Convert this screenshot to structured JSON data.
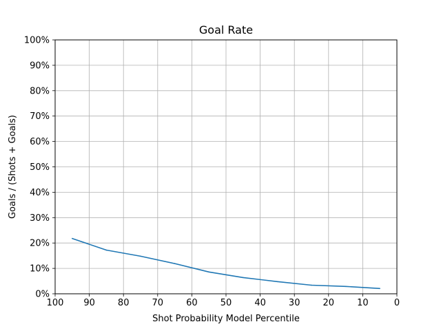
{
  "chart_data": {
    "type": "line",
    "title": "Goal Rate",
    "xlabel": "Shot Probability Model Percentile",
    "ylabel": "Goals / (Shots + Goals)",
    "xlim": [
      100,
      0
    ],
    "ylim": [
      0,
      100
    ],
    "x_reversed": true,
    "grid": true,
    "x_ticks": [
      100,
      90,
      80,
      70,
      60,
      50,
      40,
      30,
      20,
      10,
      0
    ],
    "x_tick_labels": [
      "100",
      "90",
      "80",
      "70",
      "60",
      "50",
      "40",
      "30",
      "20",
      "10",
      "0"
    ],
    "y_ticks": [
      0,
      10,
      20,
      30,
      40,
      50,
      60,
      70,
      80,
      90,
      100
    ],
    "y_tick_labels": [
      "0%",
      "10%",
      "20%",
      "30%",
      "40%",
      "50%",
      "60%",
      "70%",
      "80%",
      "90%",
      "100%"
    ],
    "series": [
      {
        "color": "#1f77b4",
        "x": [
          95,
          85,
          75,
          65,
          55,
          45,
          35,
          25,
          15,
          5
        ],
        "y": [
          21.8,
          17.2,
          14.8,
          11.9,
          8.6,
          6.4,
          4.8,
          3.4,
          2.9,
          2.1
        ]
      }
    ]
  }
}
